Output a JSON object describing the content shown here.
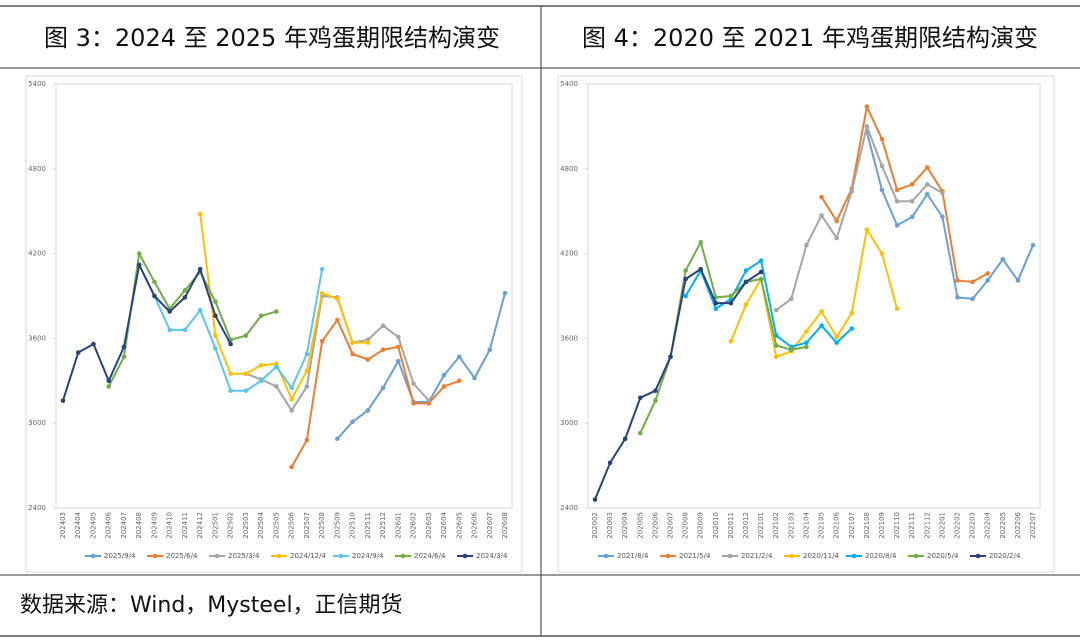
{
  "chart_data": [
    {
      "type": "line",
      "title": "图 3：2024 至 2025 年鸡蛋期限结构演变",
      "categories": [
        "202403",
        "202404",
        "202405",
        "202406",
        "202407",
        "202408",
        "202409",
        "202410",
        "202411",
        "202412",
        "202501",
        "202502",
        "202503",
        "202504",
        "202505",
        "202506",
        "202507",
        "202508",
        "202509",
        "202510",
        "202511",
        "202512",
        "202601",
        "202602",
        "202603",
        "202604",
        "202605",
        "202606",
        "202607",
        "202608"
      ],
      "ylim": [
        2400,
        5400
      ],
      "yticks": [
        2400,
        3000,
        3600,
        4200,
        4800,
        5400
      ],
      "grid": false,
      "legend": "bottom",
      "series": [
        {
          "name": "2025/9/4",
          "color": "#6a9fd4",
          "values": [
            null,
            null,
            null,
            null,
            null,
            null,
            null,
            null,
            null,
            null,
            null,
            null,
            null,
            null,
            null,
            null,
            null,
            null,
            2890,
            3010,
            3090,
            3250,
            3440,
            3150,
            3150,
            3340,
            3470,
            3320,
            3520,
            3920
          ]
        },
        {
          "name": "2025/6/4",
          "color": "#ed7d31",
          "values": [
            null,
            null,
            null,
            null,
            null,
            null,
            null,
            null,
            null,
            null,
            null,
            null,
            null,
            null,
            null,
            2690,
            2880,
            3580,
            3730,
            3490,
            3450,
            3520,
            3540,
            3140,
            3140,
            3260,
            3300,
            null,
            null,
            null
          ]
        },
        {
          "name": "2025/3/4",
          "color": "#a5a5a5",
          "values": [
            null,
            null,
            null,
            null,
            null,
            null,
            null,
            null,
            null,
            null,
            null,
            null,
            3350,
            3310,
            3260,
            3090,
            3260,
            3900,
            3890,
            3570,
            3590,
            3690,
            3610,
            3280,
            3160,
            null,
            null,
            null,
            null,
            null
          ]
        },
        {
          "name": "2024/12/4",
          "color": "#ffc000",
          "values": [
            null,
            null,
            null,
            null,
            null,
            null,
            null,
            null,
            null,
            4480,
            3620,
            3350,
            3350,
            3410,
            3420,
            3170,
            3370,
            3920,
            3880,
            3570,
            3570,
            null,
            null,
            null,
            null,
            null,
            null,
            null,
            null,
            null
          ]
        },
        {
          "name": "2024/9/4",
          "color": "#5bc5f0",
          "values": [
            null,
            null,
            null,
            null,
            null,
            null,
            3900,
            3660,
            3660,
            3800,
            3530,
            3230,
            3230,
            3300,
            3400,
            3250,
            3490,
            4090,
            null,
            null,
            null,
            null,
            null,
            null,
            null,
            null,
            null,
            null,
            null,
            null
          ]
        },
        {
          "name": "2024/6/4",
          "color": "#70ad47",
          "values": [
            null,
            null,
            null,
            3260,
            3470,
            4200,
            4000,
            3810,
            3940,
            4070,
            3860,
            3590,
            3620,
            3760,
            3790,
            null,
            null,
            null,
            null,
            null,
            null,
            null,
            null,
            null,
            null,
            null,
            null,
            null,
            null,
            null
          ]
        },
        {
          "name": "2024/3/4",
          "color": "#264478",
          "values": [
            3160,
            3500,
            3560,
            3300,
            3540,
            4120,
            3900,
            3790,
            3890,
            4090,
            3760,
            3560,
            null,
            null,
            null,
            null,
            null,
            null,
            null,
            null,
            null,
            null,
            null,
            null,
            null,
            null,
            null,
            null,
            null,
            null
          ]
        }
      ]
    },
    {
      "type": "line",
      "title": "图 4：2020 至 2021 年鸡蛋期限结构演变",
      "categories": [
        "202002",
        "202003",
        "202004",
        "202005",
        "202006",
        "202007",
        "202008",
        "202009",
        "202010",
        "202011",
        "202012",
        "202101",
        "202102",
        "202103",
        "202104",
        "202105",
        "202106",
        "202107",
        "202108",
        "202109",
        "202110",
        "202111",
        "202112",
        "202201",
        "202202",
        "202203",
        "202204",
        "202205",
        "202206",
        "202207"
      ],
      "ylim": [
        2400,
        5400
      ],
      "yticks": [
        2400,
        3000,
        3600,
        4200,
        4800,
        5400
      ],
      "grid": false,
      "legend": "bottom",
      "series": [
        {
          "name": "2021/8/4",
          "color": "#6a9fd4",
          "values": [
            null,
            null,
            null,
            null,
            null,
            null,
            null,
            null,
            null,
            null,
            null,
            null,
            null,
            null,
            null,
            null,
            null,
            null,
            5060,
            4650,
            4400,
            4460,
            4620,
            4460,
            3890,
            3880,
            4010,
            4160,
            4010,
            4260
          ]
        },
        {
          "name": "2021/5/4",
          "color": "#ed7d31",
          "values": [
            null,
            null,
            null,
            null,
            null,
            null,
            null,
            null,
            null,
            null,
            null,
            null,
            null,
            null,
            null,
            4600,
            4430,
            4660,
            5240,
            5010,
            4650,
            4690,
            4810,
            4640,
            4010,
            4000,
            4060,
            null,
            null,
            null
          ]
        },
        {
          "name": "2021/2/4",
          "color": "#a5a5a5",
          "values": [
            null,
            null,
            null,
            null,
            null,
            null,
            null,
            null,
            null,
            null,
            null,
            null,
            3800,
            3880,
            4260,
            4470,
            4310,
            4640,
            5100,
            4820,
            4570,
            4570,
            4690,
            4630,
            null,
            null,
            null,
            null,
            null,
            null
          ]
        },
        {
          "name": "2020/11/4",
          "color": "#ffc000",
          "values": [
            null,
            null,
            null,
            null,
            null,
            null,
            null,
            null,
            null,
            3580,
            3840,
            4020,
            3470,
            3510,
            3650,
            3790,
            3610,
            3780,
            4370,
            4200,
            3810,
            null,
            null,
            null,
            null,
            null,
            null,
            null,
            null,
            null
          ]
        },
        {
          "name": "2020/8/4",
          "color": "#00b0f0",
          "values": [
            null,
            null,
            null,
            null,
            null,
            null,
            3900,
            4080,
            3810,
            3880,
            4080,
            4150,
            3620,
            3540,
            3570,
            3690,
            3570,
            3670,
            null,
            null,
            null,
            null,
            null,
            null,
            null,
            null,
            null,
            null,
            null,
            null
          ]
        },
        {
          "name": "2020/5/4",
          "color": "#70ad47",
          "values": [
            null,
            null,
            null,
            2930,
            3160,
            3470,
            4080,
            4280,
            3890,
            3900,
            4000,
            4020,
            3550,
            3520,
            3540,
            null,
            null,
            null,
            null,
            null,
            null,
            null,
            null,
            null,
            null,
            null,
            null,
            null,
            null,
            null
          ]
        },
        {
          "name": "2020/2/4",
          "color": "#264478",
          "values": [
            2460,
            2720,
            2890,
            3180,
            3230,
            3470,
            4020,
            4090,
            3850,
            3850,
            4000,
            4070,
            null,
            null,
            null,
            null,
            null,
            null,
            null,
            null,
            null,
            null,
            null,
            null,
            null,
            null,
            null,
            null,
            null,
            null
          ]
        }
      ]
    }
  ],
  "source": "数据来源：Wind，Mysteel，正信期货"
}
